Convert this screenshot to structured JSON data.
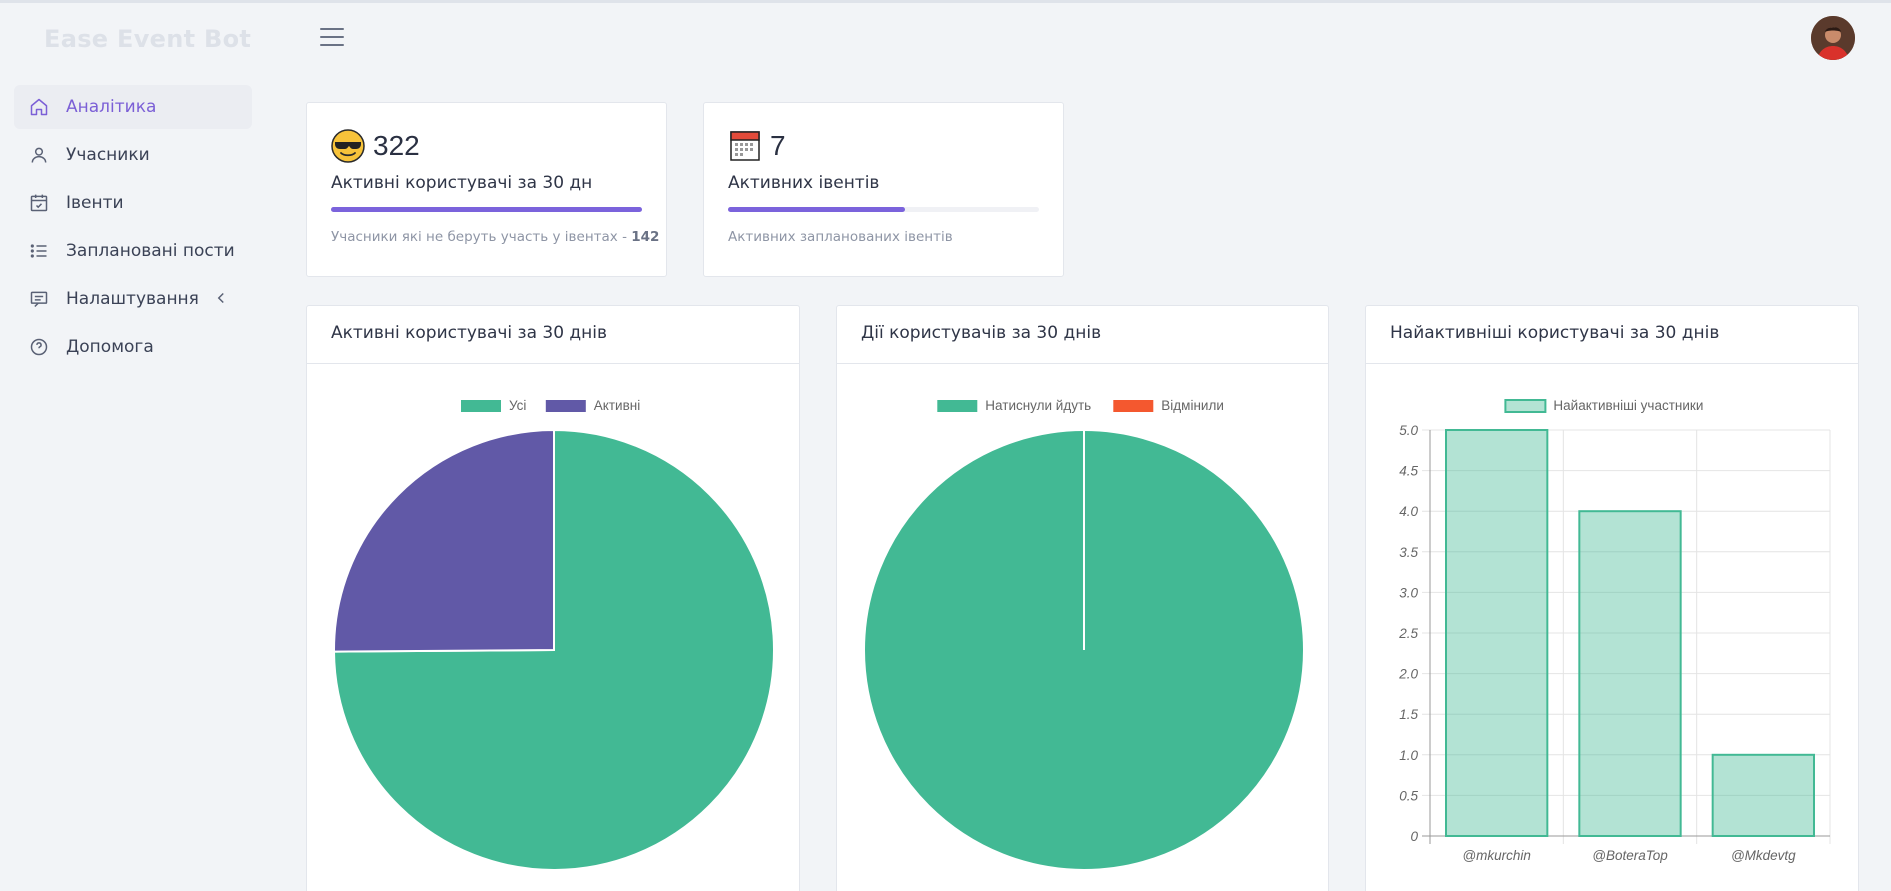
{
  "brand": "Ease Event Bot",
  "sidebar": {
    "items": [
      {
        "label": "Аналітика",
        "icon": "home-icon",
        "active": true
      },
      {
        "label": "Учасники",
        "icon": "user-icon"
      },
      {
        "label": "Івенти",
        "icon": "calendar-check-icon"
      },
      {
        "label": "Заплановані пости",
        "icon": "list-icon"
      },
      {
        "label": "Налаштування",
        "icon": "message-square-icon",
        "has_chevron": true
      },
      {
        "label": "Допомога",
        "icon": "help-circle-icon"
      }
    ]
  },
  "stats": [
    {
      "emoji": "sunglasses-emoji-icon",
      "value": "322",
      "label": "Активні користувачі за 30 дн",
      "progress": 1.0,
      "sub_text": "Учасники які не беруть участь у івентах - ",
      "sub_value": "142"
    },
    {
      "emoji": "calendar-emoji-icon",
      "value": "7",
      "label": "Активних івентів",
      "progress": 0.57,
      "sub_text": "Активних запланованих івентів",
      "sub_value": ""
    }
  ],
  "colors": {
    "green": "#42b994",
    "purple": "#6159a7",
    "red": "#f4582f",
    "accent": "#7b5fd6"
  },
  "panels": {
    "active_users": {
      "title": "Активні користувачі за 30 днів"
    },
    "user_actions": {
      "title": "Дії користувачів за 30 днів"
    },
    "top_users": {
      "title": "Найактивніші користувачі за 30 днів"
    }
  },
  "chart_data": [
    {
      "type": "pie",
      "labels": [
        "Усі",
        "Активні"
      ],
      "values": [
        322,
        108
      ],
      "legend": "top"
    },
    {
      "type": "pie",
      "labels": [
        "Натиснули йдуть",
        "Відмінили"
      ],
      "values": [
        100,
        0
      ],
      "legend": "top"
    },
    {
      "type": "bar",
      "categories": [
        "@mkurchin",
        "@BoteraTop",
        "@Mkdevtg"
      ],
      "series": [
        {
          "name": "Найактивніші участники",
          "values": [
            5,
            4,
            1
          ]
        }
      ],
      "ylim": [
        0,
        5
      ],
      "yticks": [
        "0",
        "0.5",
        "1.0",
        "1.5",
        "2.0",
        "2.5",
        "3.0",
        "3.5",
        "4.0",
        "4.5",
        "5.0"
      ],
      "grid": true,
      "legend": "top"
    }
  ]
}
